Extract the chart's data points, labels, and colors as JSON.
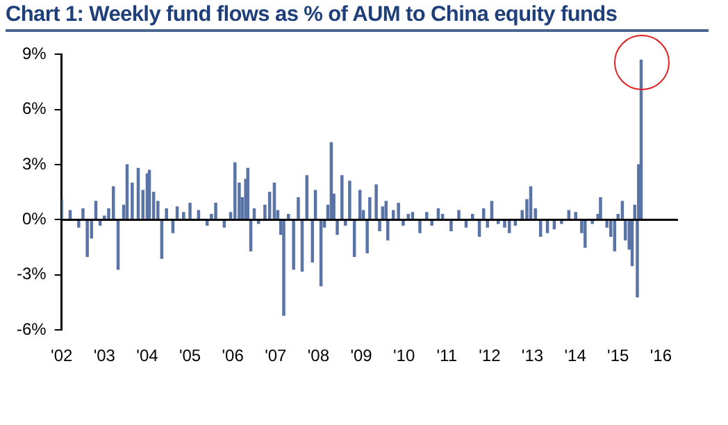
{
  "chart_data": {
    "type": "bar",
    "title": "Chart 1: Weekly fund flows as % of AUM to China equity funds",
    "x": [
      2002.0,
      2002.2,
      2002.4,
      2002.5,
      2002.6,
      2002.7,
      2002.8,
      2002.9,
      2003.0,
      2003.1,
      2003.21,
      2003.32,
      2003.45,
      2003.53,
      2003.65,
      2003.79,
      2003.9,
      2004.0,
      2004.05,
      2004.15,
      2004.25,
      2004.34,
      2004.45,
      2004.6,
      2004.7,
      2004.85,
      2005.0,
      2005.2,
      2005.4,
      2005.5,
      2005.6,
      2005.8,
      2005.95,
      2006.05,
      2006.15,
      2006.22,
      2006.3,
      2006.35,
      2006.42,
      2006.5,
      2006.6,
      2006.75,
      2006.86,
      2006.97,
      2007.05,
      2007.12,
      2007.19,
      2007.3,
      2007.42,
      2007.53,
      2007.62,
      2007.73,
      2007.86,
      2007.93,
      2008.06,
      2008.14,
      2008.22,
      2008.3,
      2008.36,
      2008.44,
      2008.55,
      2008.63,
      2008.73,
      2008.84,
      2008.97,
      2009.05,
      2009.14,
      2009.2,
      2009.35,
      2009.43,
      2009.5,
      2009.58,
      2009.62,
      2009.75,
      2009.87,
      2009.98,
      2010.1,
      2010.2,
      2010.37,
      2010.53,
      2010.65,
      2010.8,
      2010.9,
      2011.1,
      2011.28,
      2011.45,
      2011.6,
      2011.76,
      2011.86,
      2011.95,
      2012.05,
      2012.2,
      2012.35,
      2012.46,
      2012.6,
      2012.76,
      2012.87,
      2012.96,
      2013.07,
      2013.19,
      2013.35,
      2013.51,
      2013.68,
      2013.85,
      2014.01,
      2014.15,
      2014.23,
      2014.4,
      2014.53,
      2014.59,
      2014.74,
      2014.83,
      2014.92,
      2015.0,
      2015.1,
      2015.17,
      2015.26,
      2015.33,
      2015.39,
      2015.45,
      2015.48,
      2015.54
    ],
    "series": [
      {
        "color": "#5a74a6",
        "values": [
          1.1,
          0.5,
          -0.4,
          0.6,
          -2.0,
          -1.0,
          1.0,
          -0.3,
          0.2,
          0.6,
          1.8,
          -2.7,
          0.8,
          3.0,
          2.0,
          2.8,
          1.6,
          2.5,
          2.7,
          1.5,
          1.0,
          -2.1,
          0.6,
          -0.7,
          0.7,
          0.4,
          0.9,
          0.5,
          -0.3,
          0.3,
          0.9,
          -0.4,
          0.4,
          3.1,
          2.0,
          1.2,
          2.2,
          2.8,
          -1.7,
          0.6,
          -0.2,
          0.8,
          1.5,
          2.0,
          0.5,
          -0.8,
          -5.2,
          0.3,
          -2.7,
          1.2,
          -2.8,
          2.4,
          -2.3,
          1.6,
          -3.6,
          -0.4,
          0.8,
          4.2,
          1.4,
          -0.8,
          2.4,
          -0.3,
          2.1,
          -2.0,
          1.6,
          0.5,
          -1.8,
          1.2,
          1.9,
          -0.6,
          0.7,
          1.0,
          -1.1,
          0.5,
          0.9,
          -0.3,
          0.3,
          0.4,
          -0.7,
          0.4,
          -0.3,
          0.6,
          0.3,
          -0.6,
          0.5,
          -0.4,
          0.3,
          -0.9,
          0.6,
          -0.4,
          1.0,
          -0.2,
          -0.4,
          -0.7,
          -0.3,
          0.5,
          1.1,
          1.8,
          0.6,
          -0.9,
          -0.7,
          -0.5,
          -0.2,
          0.5,
          0.4,
          -0.7,
          -1.5,
          -0.2,
          0.3,
          1.2,
          -0.4,
          -0.9,
          -1.7,
          0.3,
          1.0,
          -1.1,
          -1.6,
          -2.5,
          0.8,
          -4.2,
          3.0,
          8.7
        ]
      }
    ],
    "xlim": [
      2002,
      2016.4
    ],
    "xticks": [
      {
        "value": 2002,
        "label": "'02"
      },
      {
        "value": 2003,
        "label": "'03"
      },
      {
        "value": 2004,
        "label": "'04"
      },
      {
        "value": 2005,
        "label": "'05"
      },
      {
        "value": 2006,
        "label": "'06"
      },
      {
        "value": 2007,
        "label": "'07"
      },
      {
        "value": 2008,
        "label": "'08"
      },
      {
        "value": 2009,
        "label": "'09"
      },
      {
        "value": 2010,
        "label": "'10"
      },
      {
        "value": 2011,
        "label": "'11"
      },
      {
        "value": 2012,
        "label": "'12"
      },
      {
        "value": 2013,
        "label": "'13"
      },
      {
        "value": 2014,
        "label": "'14"
      },
      {
        "value": 2015,
        "label": "'15"
      },
      {
        "value": 2016,
        "label": "'16"
      }
    ],
    "ylim": [
      -6,
      9
    ],
    "yticks": [
      {
        "value": -6,
        "label": "-6%"
      },
      {
        "value": -3,
        "label": "-3%"
      },
      {
        "value": 0,
        "label": "0%"
      },
      {
        "value": 3,
        "label": "3%"
      },
      {
        "value": 6,
        "label": "6%"
      },
      {
        "value": 9,
        "label": "9%"
      }
    ],
    "ref_lines": [
      {
        "axis": "y",
        "value": 0,
        "color": "#000000"
      }
    ],
    "grid": false,
    "legend": false
  }
}
